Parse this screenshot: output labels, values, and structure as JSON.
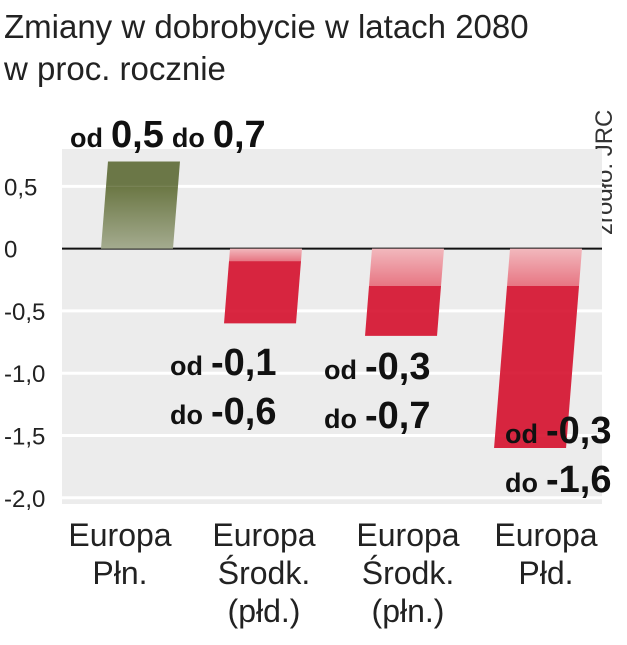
{
  "chart_data": {
    "type": "range-bar",
    "title": "Zmiany w dobrobycie w latach 2080",
    "subtitle": "w proc. rocznie",
    "source": "źródło: JRC",
    "range_words": [
      "od",
      "do"
    ],
    "categories": [
      [
        "Europa",
        "Płn."
      ],
      [
        "Europa",
        "Środk.",
        "(płd.)"
      ],
      [
        "Europa",
        "Środk.",
        "(płn.)"
      ],
      [
        "Europa",
        "Płd."
      ]
    ],
    "low_values": [
      0.5,
      -0.1,
      -0.3,
      -0.3
    ],
    "low_labels": [
      "0,5",
      "-0,1",
      "-0,3",
      "-0,3"
    ],
    "values": [
      0.7,
      -0.6,
      -0.7,
      -1.6
    ],
    "value_labels": [
      "0,7",
      "-0,6",
      "-0,7",
      "-1,6"
    ],
    "colors": [
      "#4b5a1e",
      "#d5102c",
      "#d5102c",
      "#d5102c"
    ],
    "ylim": [
      -2.05,
      0.8
    ],
    "yticks": [
      {
        "value": 0.5,
        "label": "0,5"
      },
      0,
      {
        "value": -0.5,
        "label": "-0,5"
      },
      {
        "value": -1.0,
        "label": "-1,0"
      },
      {
        "value": -1.5,
        "label": "-1,5"
      },
      {
        "value": -2.0,
        "label": "-2,0"
      }
    ],
    "grid": true
  }
}
